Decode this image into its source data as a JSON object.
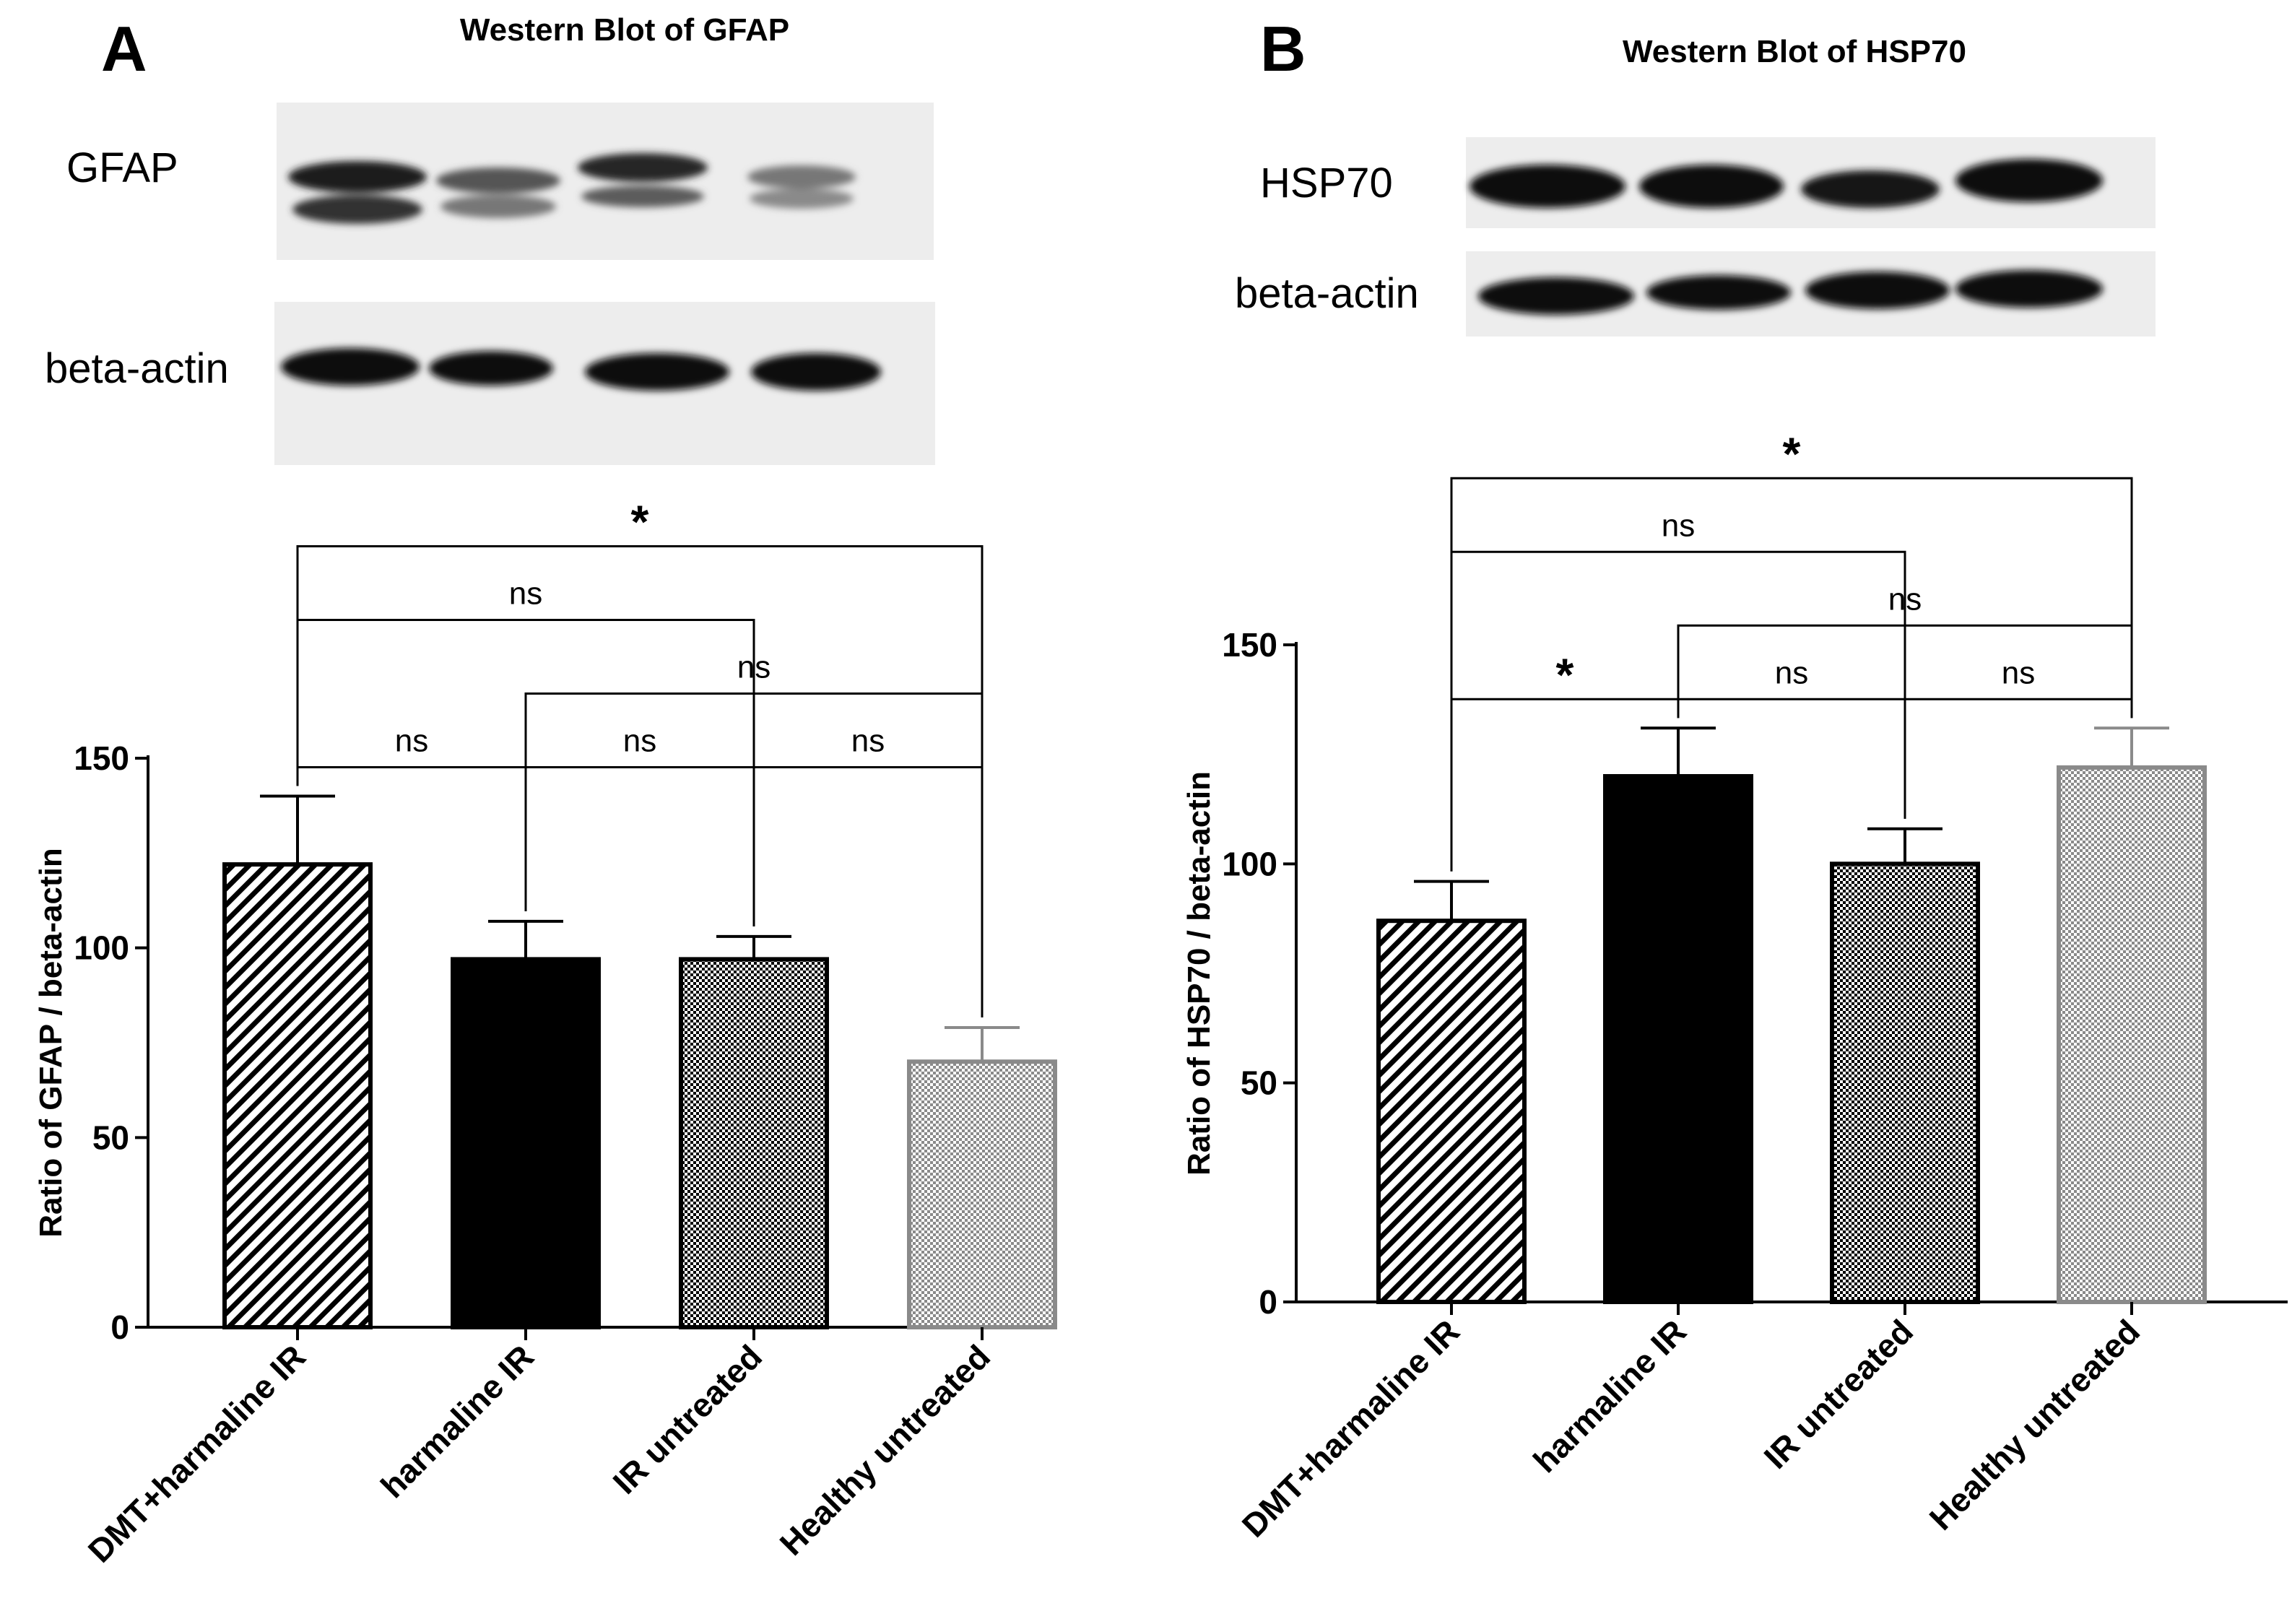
{
  "panels": [
    {
      "letter": "A",
      "blot": {
        "title": "Western Blot of GFAP",
        "rows": [
          {
            "label": "GFAP"
          },
          {
            "label": "beta-actin"
          }
        ]
      }
    },
    {
      "letter": "B",
      "blot": {
        "title": "Western Blot of HSP70",
        "rows": [
          {
            "label": "HSP70"
          },
          {
            "label": "beta-actin"
          }
        ]
      }
    }
  ],
  "chart_data": [
    {
      "type": "bar",
      "panel": "A",
      "title": "",
      "xlabel": "",
      "ylabel": "Ratio of GFAP / beta-actin",
      "ylim": [
        0,
        150
      ],
      "yticks": [
        0,
        50,
        100,
        150
      ],
      "categories": [
        "DMT+harmaline IR",
        "harmaline IR",
        "IR untreated",
        "Healthy untreated"
      ],
      "values": [
        122,
        97,
        97,
        70
      ],
      "errors": [
        18,
        10,
        6,
        9
      ],
      "fills": [
        "diag-hatch",
        "solid-black",
        "dense-check",
        "light-check-gray"
      ],
      "comparisons": [
        {
          "from": 0,
          "to": 1,
          "label": "ns"
        },
        {
          "from": 1,
          "to": 2,
          "label": "ns"
        },
        {
          "from": 2,
          "to": 3,
          "label": "ns"
        },
        {
          "from": 1,
          "to": 3,
          "label": "ns"
        },
        {
          "from": 0,
          "to": 2,
          "label": "ns"
        },
        {
          "from": 0,
          "to": 3,
          "label": "*"
        }
      ]
    },
    {
      "type": "bar",
      "panel": "B",
      "title": "",
      "xlabel": "",
      "ylabel": "Ratio of HSP70 / beta-actin",
      "ylim": [
        0,
        150
      ],
      "yticks": [
        0,
        50,
        100,
        150
      ],
      "categories": [
        "DMT+harmaline IR",
        "harmaline IR",
        "IR untreated",
        "Healthy untreated"
      ],
      "values": [
        87,
        120,
        100,
        122
      ],
      "errors": [
        9,
        11,
        8,
        9
      ],
      "fills": [
        "diag-hatch",
        "solid-black",
        "dense-check",
        "light-check-gray"
      ],
      "comparisons": [
        {
          "from": 0,
          "to": 1,
          "label": "*"
        },
        {
          "from": 1,
          "to": 2,
          "label": "ns"
        },
        {
          "from": 2,
          "to": 3,
          "label": "ns"
        },
        {
          "from": 1,
          "to": 3,
          "label": "ns"
        },
        {
          "from": 0,
          "to": 2,
          "label": "ns"
        },
        {
          "from": 0,
          "to": 3,
          "label": "*"
        }
      ]
    }
  ]
}
